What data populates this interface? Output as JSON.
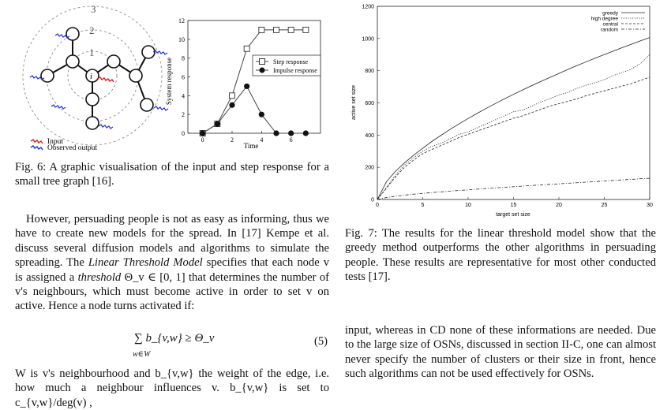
{
  "left": {
    "tree_figure": {
      "ring_labels": [
        "3",
        "2",
        "1"
      ],
      "center_label": "i",
      "legend": [
        {
          "label": "Input",
          "color": "#dd2222"
        },
        {
          "label": "Observed output",
          "color": "#2233dd"
        }
      ]
    },
    "response_chart": {
      "ylabel": "System response",
      "xlabel": "Time",
      "legend_step": "Step response",
      "legend_impulse": "Impulse response"
    },
    "fig6_caption": "Fig. 6: A graphic visualisation of the input and step response for a small tree graph [16].",
    "paragraph1": "However, persuading people is not as easy as informing, thus we have to create new models for the spread. In [17] Kempe et al. discuss several diffusion models and algorithms to simulate the spreading. The ",
    "paragraph1_italic": "Linear Threshold Model",
    "paragraph1_b": " specifies that each node v is assigned a ",
    "paragraph1_italic2": "threshold",
    "paragraph1_c": " Θ_v ∈ [0, 1] that determines the number of v's neighbours, which must become active in order to set v on active. Hence a node turns activated if:",
    "equation": "∑ b_{v,w} ≥ Θ_v",
    "equation_sub": "w∈W",
    "equation_number": "(5)",
    "paragraph2": "W is v's neighbourhood and b_{v,w} the weight of the edge, i.e. how much a neighbour influences v. b_{v,w} is set to c_{v,w}/deg(v) ,"
  },
  "right": {
    "fig7_caption": "Fig. 7: The results for the linear threshold model show that the greedy method outperforms the other algorithms in persuading people. These results are representative for most other conducted tests [17].",
    "paragraph": "input, whereas in CD none of these informations are needed. Due to the large size of OSNs, discussed in section II-C, one can almost never specify the number of clusters or their size in front, hence such algorithms can not be used effectively for OSNs."
  },
  "chart_data": [
    {
      "type": "line",
      "title": "",
      "xlabel": "Time",
      "ylabel": "System response",
      "xlim": [
        -1,
        8
      ],
      "ylim": [
        0,
        12
      ],
      "x_ticks": [
        0,
        2,
        4,
        6
      ],
      "y_ticks": [
        0,
        2,
        4,
        6,
        8,
        10,
        12
      ],
      "series": [
        {
          "name": "Step response",
          "marker": "square-open",
          "x": [
            0,
            1,
            2,
            3,
            4,
            5,
            6,
            7
          ],
          "y": [
            0,
            1,
            4,
            9,
            11,
            11,
            11,
            11
          ]
        },
        {
          "name": "Impulse response",
          "marker": "circle-filled",
          "x": [
            0,
            1,
            2,
            3,
            4,
            5,
            6,
            7
          ],
          "y": [
            0,
            1,
            3,
            5,
            2,
            0,
            0,
            0
          ]
        }
      ]
    },
    {
      "type": "line",
      "title": "",
      "xlabel": "target set size",
      "ylabel": "active set size",
      "xlim": [
        0,
        30
      ],
      "ylim": [
        0,
        1200
      ],
      "x_ticks": [
        0,
        5,
        10,
        15,
        20,
        25,
        30
      ],
      "y_ticks": [
        0,
        200,
        400,
        600,
        800,
        1000,
        1200
      ],
      "legend_position": "top-right",
      "x": [
        0,
        1,
        2,
        3,
        4,
        5,
        6,
        7,
        8,
        9,
        10,
        11,
        12,
        13,
        14,
        15,
        16,
        17,
        18,
        19,
        20,
        21,
        22,
        23,
        24,
        25,
        26,
        27,
        28,
        29,
        30
      ],
      "series": [
        {
          "name": "greedy",
          "dash": "solid",
          "y": [
            0,
            110,
            175,
            228,
            275,
            318,
            360,
            398,
            435,
            470,
            503,
            535,
            566,
            596,
            625,
            653,
            680,
            707,
            733,
            758,
            783,
            808,
            832,
            855,
            878,
            900,
            922,
            944,
            965,
            986,
            1006
          ]
        },
        {
          "name": "high degree",
          "dash": "dotted",
          "y": [
            0,
            75,
            150,
            215,
            260,
            300,
            330,
            350,
            375,
            405,
            420,
            445,
            470,
            495,
            520,
            545,
            555,
            580,
            605,
            625,
            650,
            665,
            690,
            710,
            725,
            745,
            770,
            790,
            810,
            845,
            900
          ]
        },
        {
          "name": "central",
          "dash": "dashed",
          "y": [
            0,
            70,
            140,
            200,
            245,
            285,
            310,
            335,
            360,
            385,
            405,
            425,
            445,
            465,
            485,
            505,
            520,
            540,
            560,
            580,
            595,
            610,
            625,
            645,
            660,
            675,
            690,
            705,
            720,
            740,
            760
          ]
        },
        {
          "name": "random",
          "dash": "dash-dot",
          "y": [
            0,
            12,
            20,
            27,
            33,
            38,
            43,
            47,
            52,
            56,
            60,
            64,
            68,
            72,
            76,
            79,
            83,
            87,
            90,
            94,
            97,
            101,
            104,
            108,
            111,
            115,
            118,
            122,
            125,
            129,
            132
          ]
        }
      ]
    }
  ]
}
